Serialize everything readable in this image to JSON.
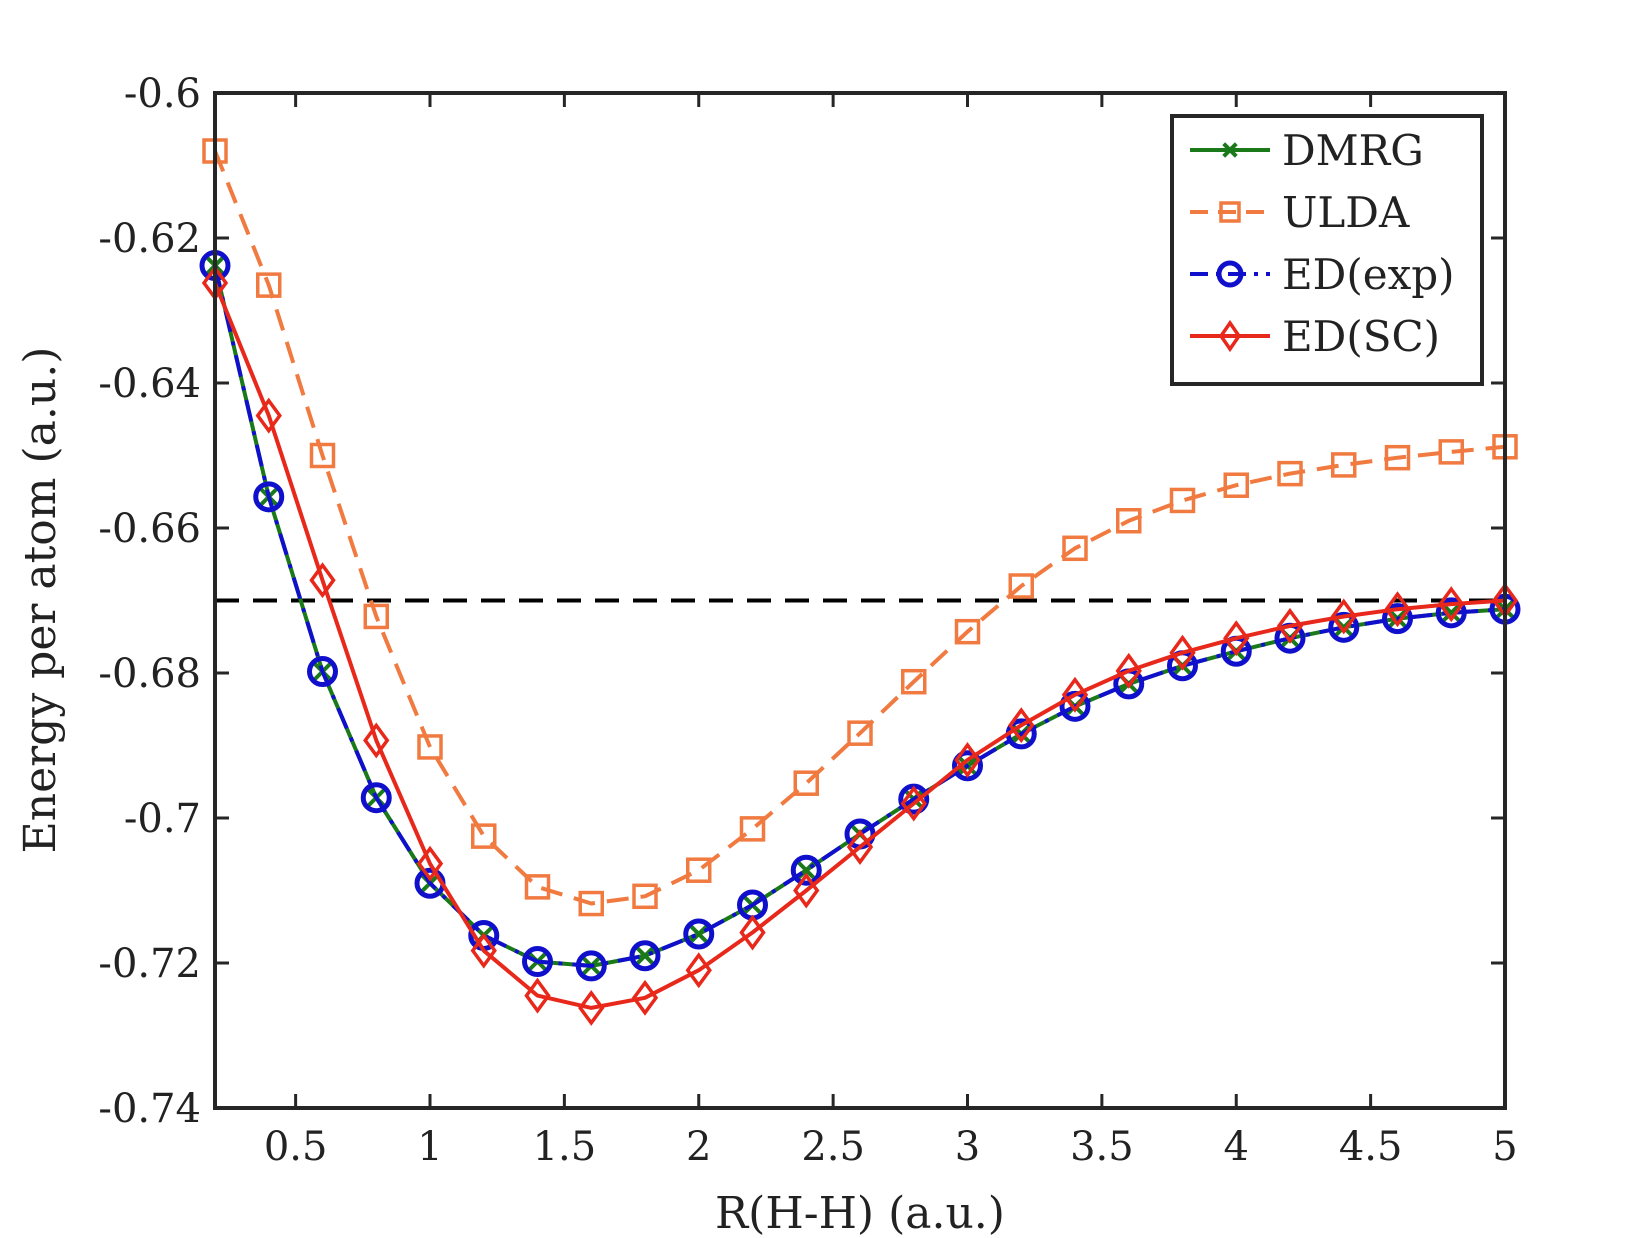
{
  "chart_data": {
    "type": "line",
    "title": "",
    "xlabel": "R(H-H) (a.u.)",
    "ylabel": "Energy per atom (a.u.)",
    "xlim": [
      0.2,
      5
    ],
    "ylim": [
      -0.74,
      -0.6
    ],
    "xticks": [
      0.5,
      1,
      1.5,
      2,
      2.5,
      3,
      3.5,
      4,
      4.5,
      5
    ],
    "xtick_labels": [
      "0.5",
      "1",
      "1.5",
      "2",
      "2.5",
      "3",
      "3.5",
      "4",
      "4.5",
      "5"
    ],
    "yticks": [
      -0.74,
      -0.72,
      -0.7,
      -0.68,
      -0.66,
      -0.64,
      -0.62,
      -0.6
    ],
    "ytick_labels": [
      "-0.74",
      "-0.72",
      "-0.7",
      "-0.68",
      "-0.66",
      "-0.64",
      "-0.62",
      "-0.6"
    ],
    "grid": false,
    "legend_position": "top-right",
    "x": [
      0.2,
      0.4,
      0.6,
      0.8,
      1.0,
      1.2,
      1.4,
      1.6,
      1.8,
      2.0,
      2.2,
      2.4,
      2.6,
      2.8,
      3.0,
      3.2,
      3.4,
      3.6,
      3.8,
      4.0,
      4.2,
      4.4,
      4.6,
      4.8,
      5.0
    ],
    "series": [
      {
        "name": "DMRG",
        "color": "#1a7a1a",
        "line": "solid",
        "marker": "x",
        "values": [
          -0.6238,
          -0.6557,
          -0.6798,
          -0.6972,
          -0.709,
          -0.7162,
          -0.7198,
          -0.7204,
          -0.719,
          -0.716,
          -0.712,
          -0.7072,
          -0.7022,
          -0.6974,
          -0.6928,
          -0.6884,
          -0.6846,
          -0.6815,
          -0.679,
          -0.677,
          -0.6752,
          -0.6737,
          -0.6725,
          -0.6717,
          -0.6712
        ]
      },
      {
        "name": "ULDA",
        "color": "#f07a40",
        "line": "dashed",
        "marker": "square",
        "values": [
          -0.608,
          -0.6265,
          -0.65,
          -0.6722,
          -0.6902,
          -0.7025,
          -0.7095,
          -0.7118,
          -0.7108,
          -0.7072,
          -0.7015,
          -0.6952,
          -0.6883,
          -0.6812,
          -0.6743,
          -0.668,
          -0.6628,
          -0.659,
          -0.6562,
          -0.6541,
          -0.6525,
          -0.6513,
          -0.6503,
          -0.6495,
          -0.6488
        ]
      },
      {
        "name": "ED(exp)",
        "color": "#1010cc",
        "line": "dashdot",
        "marker": "circle",
        "values": [
          -0.6238,
          -0.6557,
          -0.6798,
          -0.6972,
          -0.709,
          -0.7162,
          -0.7198,
          -0.7204,
          -0.719,
          -0.716,
          -0.712,
          -0.7072,
          -0.7022,
          -0.6974,
          -0.6928,
          -0.6884,
          -0.6846,
          -0.6815,
          -0.679,
          -0.677,
          -0.6752,
          -0.6737,
          -0.6725,
          -0.6717,
          -0.6712
        ]
      },
      {
        "name": "ED(SC)",
        "color": "#e8281a",
        "line": "solid",
        "marker": "diamond",
        "values": [
          -0.6262,
          -0.6445,
          -0.6672,
          -0.6893,
          -0.7063,
          -0.7183,
          -0.7245,
          -0.7262,
          -0.7248,
          -0.721,
          -0.7158,
          -0.71,
          -0.704,
          -0.698,
          -0.692,
          -0.6872,
          -0.683,
          -0.6797,
          -0.6772,
          -0.6752,
          -0.6735,
          -0.6722,
          -0.6712,
          -0.6705,
          -0.67
        ]
      }
    ],
    "reference_line": {
      "y": -0.67,
      "color": "#000000",
      "style": "dashed"
    }
  }
}
